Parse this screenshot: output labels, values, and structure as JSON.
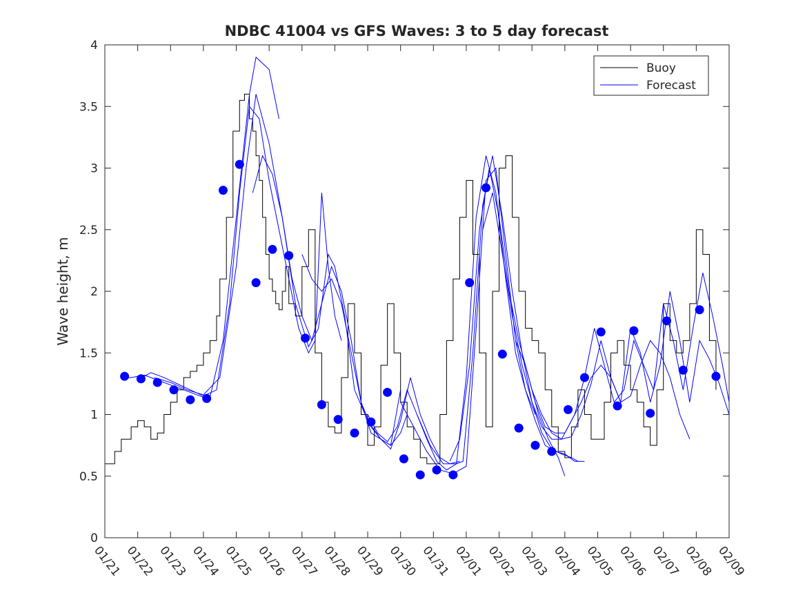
{
  "chart_data": {
    "type": "line",
    "title": "NDBC 41004 vs GFS Waves: 3 to 5 day forecast",
    "xlabel": "",
    "ylabel": "Wave height, m",
    "xlim": [
      0,
      19
    ],
    "ylim": [
      0,
      4
    ],
    "x_tick_labels": [
      "01/21",
      "01/22",
      "01/23",
      "01/24",
      "01/25",
      "01/26",
      "01/27",
      "01/28",
      "01/29",
      "01/30",
      "01/31",
      "02/01",
      "02/02",
      "02/03",
      "02/04",
      "02/05",
      "02/06",
      "02/07",
      "02/08",
      "02/09"
    ],
    "y_ticks": [
      0,
      0.5,
      1,
      1.5,
      2,
      2.5,
      3,
      3.5,
      4
    ],
    "y_tick_labels": [
      "0",
      "0.5",
      "1",
      "1.5",
      "2",
      "2.5",
      "3",
      "3.5",
      "4"
    ],
    "legend": {
      "position": "top-right",
      "entries": [
        {
          "label": "Buoy",
          "color": "#000000"
        },
        {
          "label": "Forecast",
          "color": "#0000ff"
        }
      ]
    },
    "colors": {
      "buoy": "#000000",
      "forecast": "#0000ff",
      "marker": "#0000ff",
      "axes": "#262626"
    },
    "buoy": {
      "name": "Buoy",
      "x": [
        0,
        0.3,
        0.5,
        0.8,
        1.0,
        1.2,
        1.4,
        1.6,
        1.8,
        2.0,
        2.2,
        2.4,
        2.6,
        2.8,
        3.0,
        3.2,
        3.4,
        3.5,
        3.7,
        3.9,
        4.1,
        4.25,
        4.4,
        4.5,
        4.6,
        4.7,
        4.8,
        4.9,
        5.0,
        5.1,
        5.2,
        5.3,
        5.4,
        5.5,
        5.6,
        5.8,
        6.0,
        6.2,
        6.4,
        6.6,
        6.8,
        7.0,
        7.2,
        7.4,
        7.6,
        7.8,
        8.0,
        8.2,
        8.4,
        8.6,
        8.8,
        9.0,
        9.2,
        9.4,
        9.6,
        9.8,
        10.0,
        10.2,
        10.4,
        10.6,
        10.8,
        11.0,
        11.2,
        11.4,
        11.6,
        11.8,
        12.0,
        12.2,
        12.4,
        12.6,
        12.8,
        13.0,
        13.2,
        13.4,
        13.6,
        13.8,
        14.0,
        14.2,
        14.4,
        14.6,
        14.8,
        15.0,
        15.2,
        15.4,
        15.6,
        15.8,
        16.0,
        16.2,
        16.4,
        16.6,
        16.8,
        17.0,
        17.2,
        17.4,
        17.6,
        17.8,
        18.0,
        18.2,
        18.4,
        18.6
      ],
      "values": [
        0.6,
        0.7,
        0.8,
        0.9,
        0.95,
        0.9,
        0.8,
        0.85,
        1.0,
        1.1,
        1.2,
        1.3,
        1.35,
        1.4,
        1.5,
        1.6,
        1.8,
        2.1,
        2.6,
        3.3,
        3.55,
        3.6,
        3.4,
        3.3,
        3.1,
        2.9,
        2.6,
        2.3,
        2.1,
        2.0,
        1.9,
        1.85,
        2.0,
        2.2,
        1.9,
        1.8,
        2.2,
        2.5,
        1.5,
        1.1,
        0.9,
        0.85,
        1.3,
        1.9,
        1.5,
        1.0,
        0.75,
        0.9,
        1.4,
        1.9,
        1.5,
        1.1,
        0.9,
        0.8,
        0.65,
        0.6,
        0.6,
        1.0,
        1.6,
        2.1,
        2.6,
        2.9,
        2.3,
        1.5,
        0.9,
        2.0,
        3.0,
        3.1,
        2.6,
        2.0,
        1.7,
        1.6,
        1.5,
        1.2,
        0.9,
        0.7,
        0.65,
        0.9,
        1.2,
        1.0,
        0.8,
        0.8,
        1.1,
        1.5,
        1.6,
        1.4,
        1.2,
        1.1,
        0.9,
        0.75,
        1.2,
        1.9,
        1.6,
        1.5,
        1.6,
        1.9,
        2.5,
        2.3,
        1.6,
        1.2
      ]
    },
    "forecast_runs": [
      {
        "x": [
          0.5,
          0.8,
          1.2,
          1.6,
          2.0,
          2.4,
          2.8,
          3.0,
          3.2,
          3.6,
          4.0,
          4.4,
          4.6,
          5.0,
          5.3
        ],
        "values": [
          1.3,
          1.3,
          1.32,
          1.28,
          1.24,
          1.2,
          1.16,
          1.14,
          1.14,
          1.6,
          2.6,
          3.6,
          3.9,
          3.8,
          3.4
        ]
      },
      {
        "x": [
          1.0,
          1.4,
          1.8,
          2.2,
          2.6,
          3.0,
          3.4,
          3.8,
          4.1,
          4.4,
          4.7,
          5.0,
          5.3,
          5.6,
          5.9,
          6.2,
          6.4,
          6.6,
          6.8,
          7.0,
          7.2
        ],
        "values": [
          1.28,
          1.34,
          1.3,
          1.25,
          1.2,
          1.15,
          1.2,
          1.9,
          2.8,
          3.5,
          3.4,
          2.9,
          2.5,
          2.1,
          1.7,
          1.5,
          1.6,
          2.8,
          2.2,
          1.8,
          1.6
        ]
      },
      {
        "x": [
          1.5,
          2.0,
          2.5,
          3.0,
          3.5,
          4.0,
          4.3,
          4.6,
          5.0,
          5.4,
          5.8,
          6.2,
          6.5,
          6.8,
          7.0,
          7.3,
          7.6,
          8.0,
          8.4,
          8.7,
          9.0
        ],
        "values": [
          1.3,
          1.26,
          1.2,
          1.16,
          1.3,
          2.2,
          3.0,
          3.6,
          3.2,
          2.6,
          1.9,
          1.55,
          1.7,
          2.3,
          2.2,
          1.8,
          1.2,
          0.95,
          0.8,
          0.75,
          1.2
        ]
      },
      {
        "x": [
          4.5,
          4.8,
          5.1,
          5.4,
          5.7,
          6.0,
          6.3,
          6.6,
          6.9,
          7.2,
          7.5,
          7.8,
          8.1,
          8.4,
          8.7,
          9.0,
          9.2
        ],
        "values": [
          2.8,
          3.1,
          2.95,
          2.6,
          2.1,
          1.8,
          1.6,
          1.9,
          2.2,
          2.0,
          1.6,
          1.1,
          0.85,
          0.8,
          0.75,
          0.85,
          1.0
        ]
      },
      {
        "x": [
          6.0,
          6.3,
          6.6,
          6.9,
          7.2,
          7.5,
          7.8,
          8.1,
          8.4,
          8.7,
          9.0,
          9.3,
          9.6,
          9.9,
          10.2,
          10.5,
          10.8
        ],
        "values": [
          2.3,
          2.1,
          2.0,
          2.1,
          1.9,
          1.5,
          1.1,
          0.9,
          0.8,
          0.72,
          0.95,
          1.3,
          1.0,
          0.8,
          0.65,
          0.6,
          0.62
        ]
      },
      {
        "x": [
          8.0,
          8.3,
          8.6,
          8.9,
          9.2,
          9.5,
          9.8,
          10.1,
          10.4,
          10.7,
          11.0,
          11.3,
          11.6,
          11.9,
          12.2,
          12.5,
          12.8,
          13.1
        ],
        "values": [
          1.0,
          0.85,
          0.78,
          0.9,
          1.2,
          1.0,
          0.8,
          0.62,
          0.55,
          0.6,
          1.3,
          2.6,
          3.1,
          2.8,
          2.1,
          1.5,
          1.2,
          1.0
        ]
      },
      {
        "x": [
          9.0,
          9.4,
          9.8,
          10.2,
          10.6,
          11.0,
          11.3,
          11.6,
          11.9,
          12.2,
          12.5,
          12.8,
          13.1,
          13.4,
          13.7,
          14.0,
          14.3,
          14.6
        ],
        "values": [
          1.1,
          0.9,
          0.7,
          0.55,
          0.52,
          0.58,
          1.7,
          2.9,
          3.0,
          2.3,
          1.6,
          1.2,
          0.95,
          0.75,
          0.7,
          0.68,
          0.62,
          0.62
        ]
      },
      {
        "x": [
          9.5,
          9.9,
          10.3,
          10.7,
          10.9,
          11.2,
          11.5,
          11.8,
          12.1,
          12.4,
          12.7,
          13.0,
          13.3,
          13.6,
          13.9,
          14.2,
          14.4
        ],
        "values": [
          1.0,
          0.75,
          0.6,
          0.6,
          0.62,
          1.5,
          2.7,
          3.1,
          2.6,
          2.0,
          1.5,
          1.1,
          0.85,
          0.72,
          0.68,
          0.65,
          0.62
        ]
      },
      {
        "x": [
          10.5,
          10.8,
          11.1,
          11.4,
          11.7,
          12.0,
          12.3,
          12.6,
          12.9,
          13.2,
          13.5,
          13.8,
          14.0
        ],
        "values": [
          0.62,
          0.8,
          1.4,
          2.5,
          3.0,
          2.6,
          2.0,
          1.6,
          1.3,
          1.0,
          0.8,
          0.65,
          0.5
        ]
      },
      {
        "x": [
          11.5,
          11.8,
          12.1,
          12.4,
          12.7,
          13.0,
          13.3,
          13.6,
          13.9,
          14.2,
          14.5,
          14.8,
          15.1,
          15.4,
          15.7,
          16.0,
          16.3,
          16.6,
          16.9,
          17.2,
          17.5,
          17.8
        ],
        "values": [
          2.5,
          2.8,
          2.3,
          1.8,
          1.4,
          1.1,
          0.9,
          0.8,
          0.8,
          0.95,
          1.1,
          1.3,
          1.4,
          1.3,
          1.1,
          1.15,
          1.4,
          1.6,
          1.5,
          1.3,
          1.0,
          0.8
        ]
      },
      {
        "x": [
          12.5,
          12.8,
          13.1,
          13.4,
          13.7,
          14.0,
          14.3,
          14.6,
          14.9,
          15.2,
          15.5,
          15.8,
          16.1,
          16.4,
          16.7,
          17.0,
          17.3,
          17.6,
          17.9,
          18.2,
          18.5,
          18.8,
          19.0
        ],
        "values": [
          1.6,
          1.4,
          1.1,
          0.9,
          0.85,
          0.85,
          1.0,
          1.3,
          1.7,
          1.4,
          1.1,
          1.2,
          1.6,
          1.4,
          1.2,
          1.9,
          1.6,
          1.2,
          1.7,
          2.15,
          1.8,
          1.4,
          1.1
        ]
      },
      {
        "x": [
          13.0,
          13.3,
          13.6,
          13.9,
          14.2,
          14.5,
          14.8,
          15.1,
          15.4,
          15.7,
          16.0,
          16.3,
          16.6,
          16.9,
          17.2,
          17.5,
          17.8,
          18.1,
          18.4,
          18.7,
          19.0
        ],
        "values": [
          1.2,
          1.0,
          0.85,
          0.8,
          0.82,
          1.0,
          1.25,
          1.6,
          1.3,
          1.1,
          1.7,
          1.5,
          1.1,
          1.4,
          2.0,
          1.6,
          1.1,
          1.6,
          1.45,
          1.25,
          1.0
        ]
      }
    ],
    "markers": {
      "x": [
        0.6,
        1.1,
        1.6,
        2.1,
        2.6,
        3.1,
        3.6,
        4.1,
        4.6,
        5.1,
        5.6,
        6.1,
        6.6,
        7.1,
        7.6,
        8.1,
        8.6,
        9.1,
        9.6,
        10.1,
        10.6,
        11.1,
        11.6,
        12.1,
        12.6,
        13.1,
        13.6,
        14.1,
        14.6,
        15.1,
        15.6,
        16.1,
        16.6,
        17.1,
        17.6,
        18.1,
        18.6
      ],
      "values": [
        1.31,
        1.29,
        1.26,
        1.2,
        1.12,
        1.13,
        2.82,
        3.03,
        2.07,
        2.34,
        2.29,
        1.62,
        1.08,
        0.96,
        0.85,
        0.94,
        1.18,
        0.64,
        0.51,
        0.55,
        0.51,
        2.07,
        2.84,
        1.49,
        0.89,
        0.75,
        0.7,
        1.04,
        1.3,
        1.67,
        1.07,
        1.68,
        1.01,
        1.76,
        1.36,
        1.85,
        1.31
      ]
    }
  }
}
